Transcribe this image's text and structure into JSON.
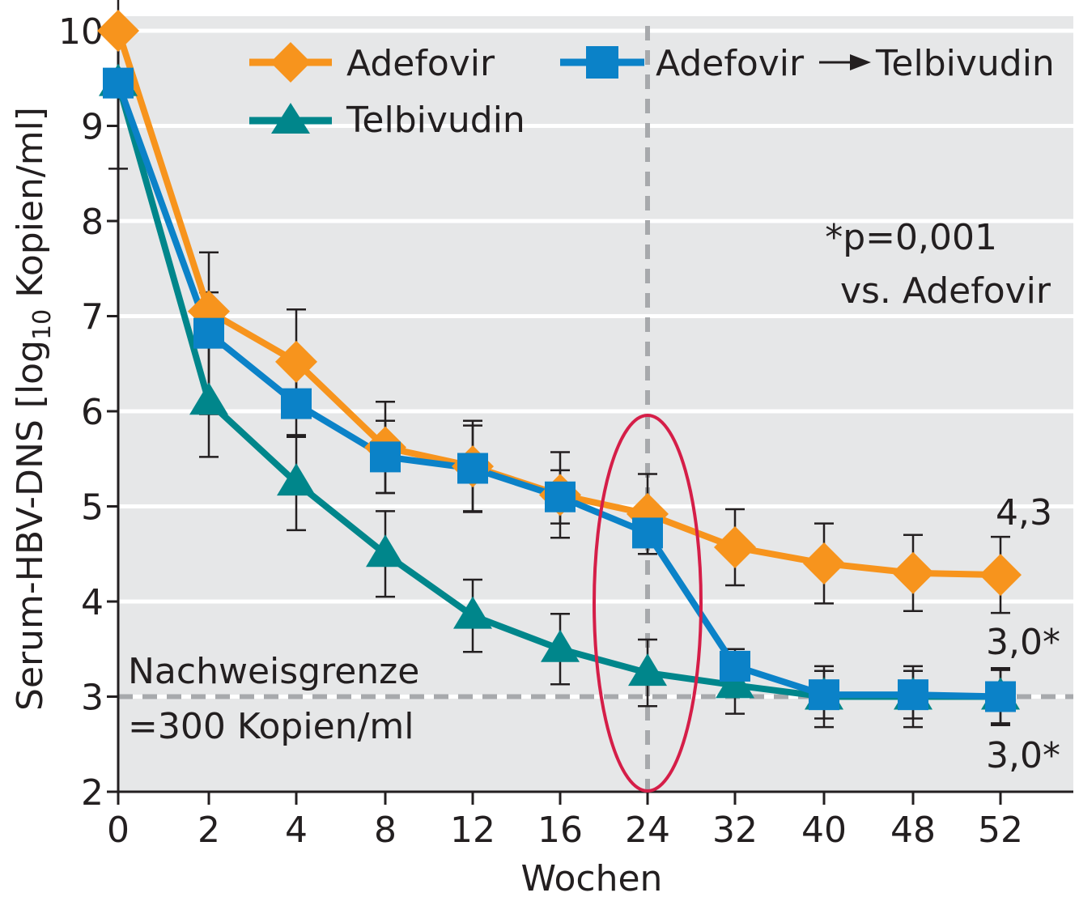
{
  "chart_data": {
    "type": "line",
    "xlabel": "Wochen",
    "ylabel": "Serum-HBV-DNS [log10 Kopien/ml]",
    "ylabel_parts": {
      "before": "Serum-HBV-DNS [log",
      "sub": "10",
      "after": " Kopien/ml]"
    },
    "categories": [
      "0",
      "2",
      "4",
      "8",
      "12",
      "16",
      "24",
      "32",
      "40",
      "48",
      "52"
    ],
    "ylim": [
      2,
      10
    ],
    "yticks": [
      "2",
      "3",
      "4",
      "5",
      "6",
      "7",
      "8",
      "9",
      "10"
    ],
    "grid": true,
    "background": "#e6e7e8",
    "series": [
      {
        "name": "Adefovir",
        "color": "#f7941d",
        "marker": "diamond",
        "values": [
          10.0,
          7.05,
          6.52,
          5.62,
          5.42,
          5.12,
          4.92,
          4.57,
          4.4,
          4.3,
          4.28
        ],
        "error": [
          null,
          0.2,
          0.55,
          0.48,
          0.48,
          0.45,
          0.42,
          0.4,
          0.42,
          0.4,
          0.4
        ]
      },
      {
        "name": "Adefovir → Telbivudin",
        "color": "#0b82c8",
        "marker": "square",
        "values": [
          9.45,
          6.82,
          6.08,
          5.52,
          5.4,
          5.1,
          4.72,
          3.32,
          3.02,
          3.02,
          3.0
        ],
        "error": [
          0.9,
          0.85,
          0.35,
          0.38,
          0.45,
          0.28,
          0.22,
          0.18,
          0.25,
          0.25,
          0.28
        ]
      },
      {
        "name": "Telbivudin",
        "color": "#00868b",
        "marker": "triangle",
        "values": [
          9.45,
          6.1,
          5.25,
          4.5,
          3.85,
          3.5,
          3.25,
          3.12,
          3.0,
          3.0,
          3.0
        ],
        "error": [
          null,
          0.58,
          0.5,
          0.45,
          0.38,
          0.37,
          0.35,
          0.3,
          0.32,
          0.32,
          0.3
        ]
      }
    ],
    "reference_lines": [
      {
        "axis": "y",
        "value": 3,
        "style": "dashed",
        "color": "#a7a9ac"
      },
      {
        "axis": "x",
        "category": "24",
        "style": "dashed",
        "color": "#a7a9ac"
      }
    ],
    "highlight_ellipse": {
      "category": "24",
      "color": "#d51e48"
    },
    "annotations": {
      "p_value_line1": "*p=0,001",
      "p_value_line2": "vs. Adefovir",
      "limit_line1": "Nachweisgrenze",
      "limit_line2": "=300 Kopien/ml",
      "end_adefovir": "4,3",
      "end_switch": "3,0*",
      "end_telbivudin": "3,0*"
    },
    "legend": {
      "adefovir": "Adefovir",
      "telbivudin": "Telbivudin",
      "switch_part1": "Adefovir",
      "switch_part2": "Telbivudin"
    }
  }
}
